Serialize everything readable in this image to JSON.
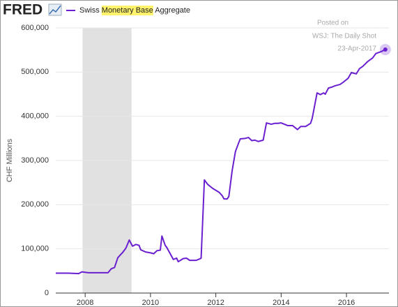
{
  "chart_data": {
    "type": "line",
    "logo": "FRED",
    "highlight": "Monetary Base",
    "y_label": "CHF Millions",
    "annotations": [
      "Posted on",
      "WSJ: The Daily Shot",
      "23-Apr-2017"
    ],
    "recession": [
      2007.92,
      2009.42
    ],
    "xlim": [
      2007.1,
      2017.3
    ],
    "xticks": [
      2008,
      2010,
      2012,
      2014,
      2016
    ],
    "ylim": [
      0,
      600000
    ],
    "yticks": [
      0,
      {
        "value": 100000,
        "label": "100,000"
      },
      {
        "value": 200000,
        "label": "200,000"
      },
      {
        "value": 300000,
        "label": "300,000"
      },
      {
        "value": 400000,
        "label": "400,000"
      },
      {
        "value": 500000,
        "label": "500,000"
      },
      {
        "value": 600000,
        "label": "600,000"
      }
    ],
    "grid": true,
    "x": [
      2007.1,
      2007.5,
      2007.8,
      2007.9,
      2008.1,
      2008.4,
      2008.7,
      2008.8,
      2008.9,
      2009.0,
      2009.15,
      2009.25,
      2009.35,
      2009.45,
      2009.55,
      2009.65,
      2009.7,
      2009.85,
      2010.0,
      2010.1,
      2010.2,
      2010.3,
      2010.35,
      2010.45,
      2010.5,
      2010.7,
      2010.8,
      2010.85,
      2011.0,
      2011.1,
      2011.2,
      2011.4,
      2011.5,
      2011.55,
      2011.65,
      2011.75,
      2011.9,
      2012.1,
      2012.2,
      2012.25,
      2012.35,
      2012.4,
      2012.5,
      2012.6,
      2012.7,
      2012.75,
      2012.9,
      2013.0,
      2013.1,
      2013.2,
      2013.3,
      2013.45,
      2013.55,
      2013.7,
      2013.8,
      2013.9,
      2014.0,
      2014.1,
      2014.2,
      2014.35,
      2014.5,
      2014.6,
      2014.75,
      2014.9,
      2014.95,
      2015.1,
      2015.2,
      2015.3,
      2015.35,
      2015.45,
      2015.55,
      2015.65,
      2015.8,
      2015.9,
      2016.05,
      2016.15,
      2016.3,
      2016.4,
      2016.5,
      2016.65,
      2016.8,
      2016.9,
      2017.05,
      2017.19
    ],
    "series": [
      {
        "name": "Swiss Monetary Base Aggregate",
        "color": "#6a1fd0",
        "values": [
          45000,
          45000,
          44000,
          48000,
          46000,
          46000,
          46000,
          55000,
          58000,
          80000,
          92000,
          102000,
          120000,
          106000,
          110000,
          108000,
          98000,
          93000,
          91000,
          89000,
          96000,
          97000,
          129000,
          108000,
          103000,
          76000,
          79000,
          71000,
          78000,
          79000,
          74000,
          74000,
          77000,
          79000,
          256000,
          246000,
          237000,
          228000,
          220000,
          213000,
          213000,
          219000,
          277000,
          320000,
          340000,
          349000,
          350000,
          352000,
          345000,
          346000,
          343000,
          346000,
          385000,
          382000,
          384000,
          384000,
          385000,
          382000,
          379000,
          379000,
          370000,
          377000,
          377000,
          384000,
          395000,
          453000,
          449000,
          453000,
          450000,
          464000,
          466000,
          469000,
          472000,
          477000,
          486000,
          499000,
          496000,
          508000,
          513000,
          524000,
          532000,
          542000,
          546000,
          551000
        ]
      }
    ]
  }
}
